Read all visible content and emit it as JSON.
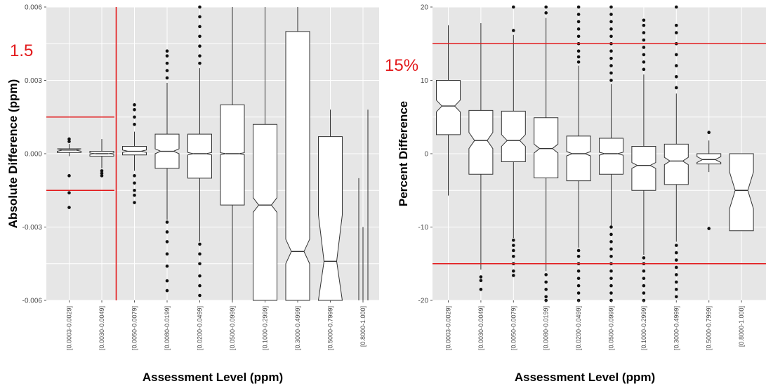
{
  "chart_data": [
    {
      "type": "boxplot",
      "ylabel": "Absolute Difference (ppm)",
      "xlabel": "Assessment Level (ppm)",
      "ylim": [
        -0.006,
        0.006
      ],
      "yticks": [
        -0.006,
        -0.003,
        0.0,
        0.003,
        0.006
      ],
      "ytick_labels": [
        "-0.006",
        "-0.003",
        "0.000",
        "0.003",
        "0.006"
      ],
      "grid": true,
      "notched": true,
      "annotation": "1.5",
      "reference_lines": {
        "horizontal": [
          0.0015,
          -0.0015
        ],
        "vertical_between_categories": [
          2,
          3
        ]
      },
      "categories": [
        "[0.0003-0.0029]",
        "[0.0030-0.0049]",
        "[0.0050-0.0079]",
        "[0.0080-0.0199]",
        "[0.0200-0.0499]",
        "[0.0500-0.0999]",
        "[0.1000-0.2999]",
        "[0.3000-0.4999]",
        "[0.5000-0.7999]",
        "[0.8000-1.000]"
      ],
      "boxes": [
        {
          "q1": 5e-05,
          "median": 0.00015,
          "q3": 0.0002,
          "notch_lo": 0.0001,
          "notch_hi": 0.0002,
          "whisker_lo": -0.0001,
          "whisker_hi": 0.0004,
          "outliers": [
            0.0005,
            0.0006,
            -0.0009,
            -0.0016,
            -0.0022
          ]
        },
        {
          "q1": -0.0001,
          "median": 0.0,
          "q3": 0.0001,
          "notch_lo": -3e-05,
          "notch_hi": 3e-05,
          "whisker_lo": -0.0006,
          "whisker_hi": 0.0006,
          "outliers": [
            -0.0007,
            -0.0008,
            -0.0009
          ]
        },
        {
          "q1": -5e-05,
          "median": 0.0001,
          "q3": 0.0003,
          "notch_lo": 5e-05,
          "notch_hi": 0.00015,
          "whisker_lo": -0.0007,
          "whisker_hi": 0.0009,
          "outliers": [
            0.0012,
            0.0015,
            0.0018,
            0.002,
            -0.0009,
            -0.0012,
            -0.0015,
            -0.0017,
            -0.002
          ]
        },
        {
          "q1": -0.0006,
          "median": 0.0001,
          "q3": 0.0008,
          "notch_lo": 0.0,
          "notch_hi": 0.0002,
          "whisker_lo": -0.0027,
          "whisker_hi": 0.0029,
          "outliers": [
            0.0031,
            0.0034,
            0.0037,
            0.004,
            0.0042,
            -0.0028,
            -0.0032,
            -0.0036,
            -0.0041,
            -0.0046,
            -0.0052,
            -0.0056
          ]
        },
        {
          "q1": -0.001,
          "median": 0.0,
          "q3": 0.0008,
          "notch_lo": -5e-05,
          "notch_hi": 5e-05,
          "whisker_lo": -0.0036,
          "whisker_hi": 0.0035,
          "outliers": [
            0.0037,
            0.004,
            0.0044,
            0.0048,
            0.0052,
            0.0056,
            0.006,
            -0.0037,
            -0.0041,
            -0.0045,
            -0.005,
            -0.0054,
            -0.0058
          ]
        },
        {
          "q1": -0.0021,
          "median": 0.0,
          "q3": 0.002,
          "notch_lo": -4e-05,
          "notch_hi": 4e-05,
          "whisker_lo": -0.006,
          "whisker_hi": 0.006,
          "outliers": []
        },
        {
          "q1": -0.006,
          "median": -0.0021,
          "q3": 0.0012,
          "notch_lo": -0.0024,
          "notch_hi": -0.0018,
          "whisker_lo": -0.006,
          "whisker_hi": 0.006,
          "outliers": []
        },
        {
          "q1": -0.006,
          "median": -0.004,
          "q3": 0.005,
          "notch_lo": -0.0045,
          "notch_hi": -0.0035,
          "whisker_lo": -0.006,
          "whisker_hi": 0.006,
          "outliers": []
        },
        {
          "q1": -0.006,
          "median": -0.0044,
          "q3": 0.0007,
          "notch_lo": -0.006,
          "notch_hi": -0.0025,
          "whisker_lo": -0.006,
          "whisker_hi": 0.0018,
          "outliers": []
        },
        {
          "lines": [
            {
              "lo": -0.006,
              "hi": -0.001,
              "offset": -6
            },
            {
              "lo": -0.006,
              "hi": -0.003,
              "offset": 0
            },
            {
              "lo": -0.006,
              "hi": 0.0018,
              "offset": 7
            }
          ]
        }
      ]
    },
    {
      "type": "boxplot",
      "ylabel": "Percent Difference",
      "xlabel": "Assessment Level (ppm)",
      "ylim": [
        -20,
        20
      ],
      "yticks": [
        -20,
        -10,
        0,
        10,
        20
      ],
      "ytick_labels": [
        "-20",
        "-10",
        "0",
        "10",
        "20"
      ],
      "grid": true,
      "notched": true,
      "annotation": "15%",
      "reference_lines": {
        "horizontal": [
          15,
          -15
        ]
      },
      "categories": [
        "[0.0003-0.0029]",
        "[0.0030-0.0049]",
        "[0.0050-0.0079]",
        "[0.0080-0.0199]",
        "[0.0200-0.0499]",
        "[0.0500-0.0999]",
        "[0.1000-0.2999]",
        "[0.3000-0.4999]",
        "[0.5000-0.7999]",
        "[0.8000-1.000]"
      ],
      "boxes": [
        {
          "q1": 2.6,
          "median": 6.5,
          "q3": 10.0,
          "notch_lo": 5.7,
          "notch_hi": 7.3,
          "whisker_lo": -5.7,
          "whisker_hi": 17.5,
          "outliers": []
        },
        {
          "q1": -2.8,
          "median": 1.8,
          "q3": 5.9,
          "notch_lo": 0.7,
          "notch_hi": 2.9,
          "whisker_lo": -15.8,
          "whisker_hi": 17.8,
          "outliers": [
            -16.8,
            -17.3,
            -18.5
          ]
        },
        {
          "q1": -1.1,
          "median": 1.8,
          "q3": 5.8,
          "notch_lo": 1.0,
          "notch_hi": 2.6,
          "whisker_lo": -11.5,
          "whisker_hi": 16.2,
          "outliers": [
            16.8,
            20.0,
            -11.8,
            -12.5,
            -13.2,
            -14.0,
            -15.0,
            -16.0,
            -16.6
          ]
        },
        {
          "q1": -3.3,
          "median": 0.7,
          "q3": 4.9,
          "notch_lo": 0.1,
          "notch_hi": 1.3,
          "whisker_lo": -16.0,
          "whisker_hi": 18.5,
          "outliers": [
            19.2,
            20.0,
            -16.5,
            -17.5,
            -18.5,
            -19.5,
            -20.0
          ]
        },
        {
          "q1": -3.7,
          "median": 0.0,
          "q3": 2.4,
          "notch_lo": -0.3,
          "notch_hi": 0.3,
          "whisker_lo": -12.8,
          "whisker_hi": 12.0,
          "outliers": [
            12.5,
            13.2,
            14.0,
            15.0,
            16.0,
            17.0,
            18.0,
            19.0,
            20.0,
            -13.2,
            -14.0,
            -15.0,
            -16.0,
            -17.0,
            -18.0,
            -19.0,
            -20.0
          ]
        },
        {
          "q1": -2.8,
          "median": 0.0,
          "q3": 2.1,
          "notch_lo": -0.2,
          "notch_hi": 0.2,
          "whisker_lo": -9.8,
          "whisker_hi": 9.5,
          "outliers": [
            10.0,
            11.0,
            12.0,
            13.0,
            14.0,
            15.0,
            16.0,
            17.0,
            18.0,
            19.0,
            20.0,
            -10.0,
            -11.0,
            -12.0,
            -13.0,
            -14.0,
            -15.0,
            -16.0,
            -17.0,
            -18.0,
            -19.0,
            -20.0
          ]
        },
        {
          "q1": -5.0,
          "median": -1.6,
          "q3": 1.0,
          "notch_lo": -2.0,
          "notch_hi": -1.2,
          "whisker_lo": -13.8,
          "whisker_hi": 10.8,
          "outliers": [
            11.5,
            12.5,
            13.5,
            14.5,
            15.5,
            16.5,
            17.5,
            18.2,
            -14.2,
            -15.0,
            -16.0,
            -17.0,
            -18.0,
            -19.0,
            -20.0
          ]
        },
        {
          "q1": -4.2,
          "median": -1.0,
          "q3": 1.3,
          "notch_lo": -1.5,
          "notch_hi": -0.5,
          "whisker_lo": -12.0,
          "whisker_hi": 8.2,
          "outliers": [
            9.0,
            10.5,
            12.0,
            13.5,
            15.0,
            16.5,
            17.5,
            20.0,
            -12.5,
            -13.5,
            -14.5,
            -15.5,
            -16.5,
            -17.5,
            -18.5,
            -19.5
          ]
        },
        {
          "q1": -1.4,
          "median": -0.8,
          "q3": 0.0,
          "notch_lo": -1.2,
          "notch_hi": -0.4,
          "whisker_lo": -2.5,
          "whisker_hi": 1.8,
          "outliers": [
            2.9,
            -10.2
          ]
        },
        {
          "q1": -10.5,
          "median": -5.0,
          "q3": 0.0,
          "notch_lo": -7.5,
          "notch_hi": -2.5,
          "whisker_lo": -10.5,
          "whisker_hi": 0.0,
          "outliers": []
        }
      ]
    }
  ]
}
